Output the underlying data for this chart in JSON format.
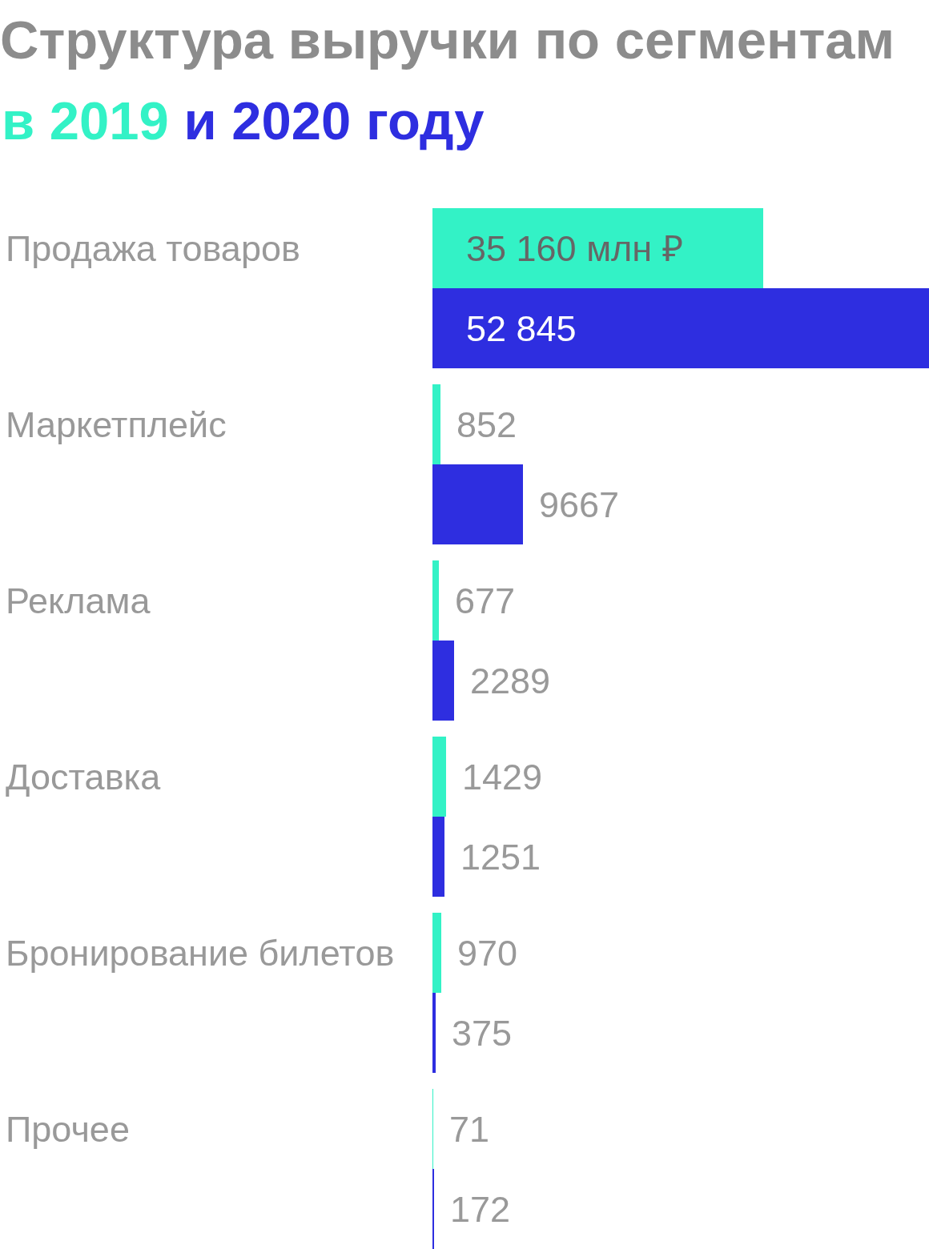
{
  "chart_data": {
    "type": "bar",
    "orientation": "horizontal",
    "title": "Структура выручки по сегментам",
    "subtitle": "в 2019 и 2020 году",
    "categories": [
      "Продажа товаров",
      "Маркетплейс",
      "Реклама",
      "Доставка",
      "Бронирование билетов",
      "Прочее"
    ],
    "series": [
      {
        "color": "#33f2c6",
        "values": [
          35160,
          852,
          677,
          1429,
          970,
          71
        ],
        "value_labels": [
          "35 160 млн ₽",
          "852",
          "677",
          "1429",
          "970",
          "71"
        ]
      },
      {
        "color": "#2e2ee0",
        "values": [
          52845,
          9667,
          2289,
          1251,
          375,
          172
        ],
        "value_labels": [
          "52 845",
          "9667",
          "2289",
          "1251",
          "375",
          "172"
        ]
      }
    ],
    "tick_labels": "y"
  }
}
